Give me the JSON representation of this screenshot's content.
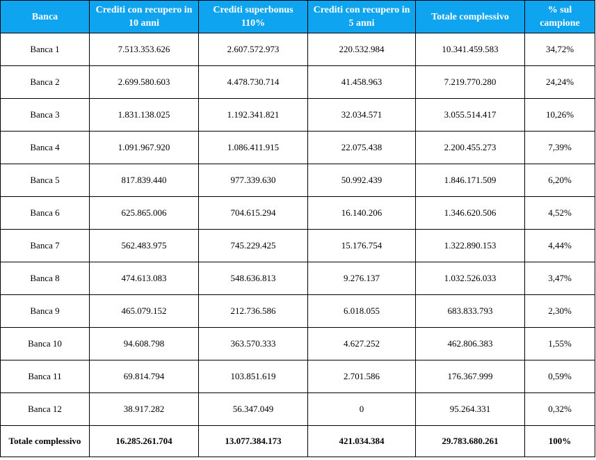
{
  "headers": [
    "Banca",
    "Crediti con recupero in 10 anni",
    "Crediti superbonus 110%",
    "Crediti con recupero in 5 anni",
    "Totale complessivo",
    "% sul campione"
  ],
  "rows": [
    [
      "Banca 1",
      "7.513.353.626",
      "2.607.572.973",
      "220.532.984",
      "10.341.459.583",
      "34,72%"
    ],
    [
      "Banca 2",
      "2.699.580.603",
      "4.478.730.714",
      "41.458.963",
      "7.219.770.280",
      "24,24%"
    ],
    [
      "Banca 3",
      "1.831.138.025",
      "1.192.341.821",
      "32.034.571",
      "3.055.514.417",
      "10,26%"
    ],
    [
      "Banca 4",
      "1.091.967.920",
      "1.086.411.915",
      "22.075.438",
      "2.200.455.273",
      "7,39%"
    ],
    [
      "Banca 5",
      "817.839.440",
      "977.339.630",
      "50.992.439",
      "1.846.171.509",
      "6,20%"
    ],
    [
      "Banca 6",
      "625.865.006",
      "704.615.294",
      "16.140.206",
      "1.346.620.506",
      "4,52%"
    ],
    [
      "Banca 7",
      "562.483.975",
      "745.229.425",
      "15.176.754",
      "1.322.890.153",
      "4,44%"
    ],
    [
      "Banca 8",
      "474.613.083",
      "548.636.813",
      "9.276.137",
      "1.032.526.033",
      "3,47%"
    ],
    [
      "Banca 9",
      "465.079.152",
      "212.736.586",
      "6.018.055",
      "683.833.793",
      "2,30%"
    ],
    [
      "Banca 10",
      "94.608.798",
      "363.570.333",
      "4.627.252",
      "462.806.383",
      "1,55%"
    ],
    [
      "Banca 11",
      "69.814.794",
      "103.851.619",
      "2.701.586",
      "176.367.999",
      "0,59%"
    ],
    [
      "Banca 12",
      "38.917.282",
      "56.347.049",
      "0",
      "95.264.331",
      "0,32%"
    ]
  ],
  "total": [
    "Totale complessivo",
    "16.285.261.704",
    "13.077.384.173",
    "421.034.384",
    "29.783.680.261",
    "100%"
  ],
  "colors": {
    "header_background": "#0fa4f0",
    "header_text": "#ffffff",
    "border": "#000000"
  }
}
